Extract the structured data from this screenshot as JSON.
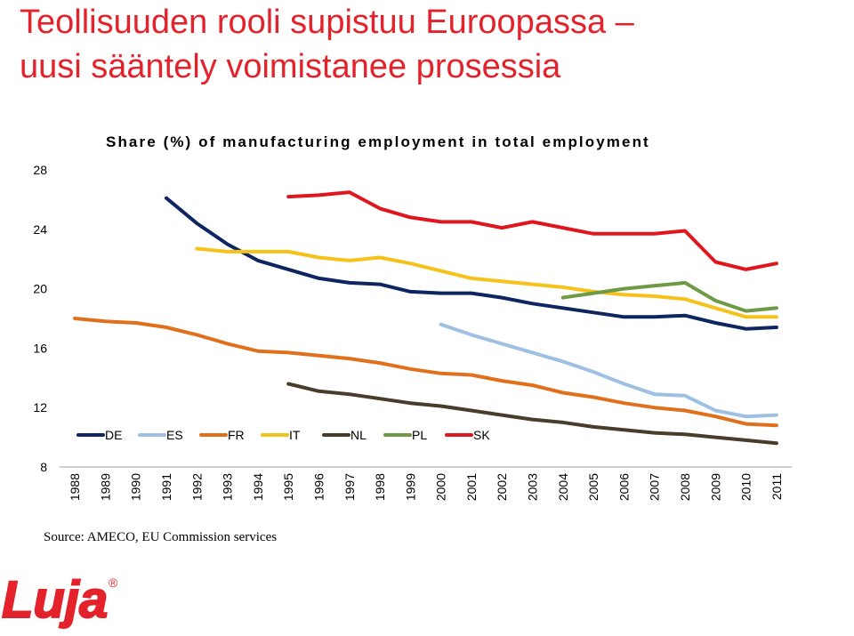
{
  "slide": {
    "title_line1": "Teollisuuden rooli supistuu Euroopassa –",
    "title_line2": "uusi sääntely voimistanee prosessia",
    "title_color": "#e3222b",
    "source": "Source: AMECO, EU Commission services",
    "logo_text": "Luja",
    "logo_mark": "®",
    "logo_color": "#e3222b"
  },
  "chart_data": {
    "type": "line",
    "title": "Share (%) of manufacturing employment in total employment",
    "xlabel": "",
    "ylabel": "",
    "ylim": [
      8,
      28
    ],
    "yticks": [
      8,
      12,
      16,
      20,
      24,
      28
    ],
    "x": [
      "1988",
      "1989",
      "1990",
      "1991",
      "1992",
      "1993",
      "1994",
      "1995",
      "1996",
      "1997",
      "1998",
      "1999",
      "2000",
      "2001",
      "2002",
      "2003",
      "2004",
      "2005",
      "2006",
      "2007",
      "2008",
      "2009",
      "2010",
      "2011"
    ],
    "grid": false,
    "legend_position": "bottom-left",
    "series": [
      {
        "name": "DE",
        "color": "#0d2560",
        "values": [
          null,
          null,
          null,
          26.1,
          24.4,
          23.0,
          21.9,
          21.3,
          20.7,
          20.4,
          20.3,
          19.8,
          19.7,
          19.7,
          19.4,
          19.0,
          18.7,
          18.4,
          18.1,
          18.1,
          18.2,
          17.7,
          17.3,
          17.4
        ]
      },
      {
        "name": "ES",
        "color": "#9ec0e2",
        "values": [
          null,
          null,
          null,
          null,
          null,
          null,
          null,
          null,
          null,
          null,
          null,
          null,
          17.6,
          16.9,
          16.3,
          15.7,
          15.1,
          14.4,
          13.6,
          12.9,
          12.8,
          11.8,
          11.4,
          11.5
        ]
      },
      {
        "name": "FR",
        "color": "#e0701c",
        "values": [
          18.0,
          17.8,
          17.7,
          17.4,
          16.9,
          16.3,
          15.8,
          15.7,
          15.5,
          15.3,
          15.0,
          14.6,
          14.3,
          14.2,
          13.8,
          13.5,
          13.0,
          12.7,
          12.3,
          12.0,
          11.8,
          11.4,
          10.9,
          10.8
        ]
      },
      {
        "name": "IT",
        "color": "#f5c11b",
        "values": [
          null,
          null,
          null,
          null,
          22.7,
          22.5,
          22.5,
          22.5,
          22.1,
          21.9,
          22.1,
          21.7,
          21.2,
          20.7,
          20.5,
          20.3,
          20.1,
          19.8,
          19.6,
          19.5,
          19.3,
          18.7,
          18.1,
          18.1
        ]
      },
      {
        "name": "NL",
        "color": "#4a3c2b",
        "values": [
          null,
          null,
          null,
          null,
          null,
          null,
          null,
          13.6,
          13.1,
          12.9,
          12.6,
          12.3,
          12.1,
          11.8,
          11.5,
          11.2,
          11.0,
          10.7,
          10.5,
          10.3,
          10.2,
          10.0,
          9.8,
          9.6
        ]
      },
      {
        "name": "PL",
        "color": "#6e9a45",
        "values": [
          null,
          null,
          null,
          null,
          null,
          null,
          null,
          null,
          null,
          null,
          null,
          null,
          null,
          null,
          null,
          null,
          19.4,
          19.7,
          20.0,
          20.2,
          20.4,
          19.2,
          18.5,
          18.7
        ]
      },
      {
        "name": "SK",
        "color": "#e0161e",
        "values": [
          null,
          null,
          null,
          null,
          null,
          null,
          null,
          26.2,
          26.3,
          26.5,
          25.4,
          24.8,
          24.5,
          24.5,
          24.1,
          24.5,
          24.1,
          23.7,
          23.7,
          23.7,
          23.9,
          21.8,
          21.3,
          21.7
        ]
      }
    ]
  }
}
